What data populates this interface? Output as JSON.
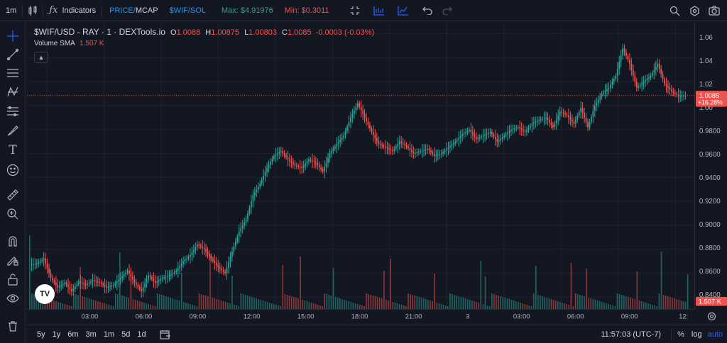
{
  "toolbar": {
    "interval": "1m",
    "indicators_label": "Indicators",
    "price_mcap_prefix": "PRICE/",
    "price_mcap_suffix": "MCAP",
    "pair_toggle": "$WIF/SOL",
    "max_label": "Max: $4.91976",
    "min_label": "Min: $0.3011"
  },
  "legend": {
    "symbol": "$WIF/USD - RAY · 1 · DEXTools.io",
    "o_label": "O",
    "o_val": "1.0088",
    "h_label": "H",
    "h_val": "1.00875",
    "l_label": "L",
    "l_val": "1.00803",
    "c_label": "C",
    "c_val": "1.0085",
    "change": "-0.0003 (-0.03%)",
    "volume_label": "Volume SMA",
    "volume_val": "1.507 K"
  },
  "price_axis": {
    "ticks": [
      "1.06",
      "1.04",
      "1.02",
      "1.00",
      "0.9800",
      "0.9600",
      "0.9400",
      "0.9200",
      "0.9000",
      "0.8800",
      "0.8600",
      "0.8400"
    ],
    "current_price": "1.0085",
    "current_change": "+16.28%",
    "volume_badge": "1.507 K"
  },
  "time_axis": {
    "ticks": [
      "03:00",
      "06:00",
      "09:00",
      "12:00",
      "15:00",
      "18:00",
      "21:00",
      "3",
      "03:00",
      "06:00",
      "09:00",
      "12:"
    ]
  },
  "bottom": {
    "ranges": [
      "5y",
      "1y",
      "6m",
      "3m",
      "1m",
      "5d",
      "1d"
    ],
    "clock": "11:57:03 (UTC-7)",
    "percent": "%",
    "log": "log",
    "auto": "auto"
  },
  "logo_text": "TV",
  "colors": {
    "background": "#131722",
    "up": "#26a69a",
    "down": "#ef5350",
    "accent": "#2962ff",
    "max_green": "#26a69a",
    "min_red": "#ef5350",
    "mcap_blue": "#2196f3"
  },
  "chart_data": {
    "type": "line",
    "title": "$WIF/USD - RAY · 1 · DEXTools.io",
    "ylim": [
      0.83,
      1.07
    ],
    "x_ticks": [
      "03:00",
      "06:00",
      "09:00",
      "12:00",
      "15:00",
      "18:00",
      "21:00",
      "3",
      "03:00",
      "06:00",
      "09:00",
      "12:"
    ],
    "price_series": [
      0.867,
      0.868,
      0.872,
      0.856,
      0.848,
      0.852,
      0.845,
      0.853,
      0.85,
      0.854,
      0.852,
      0.848,
      0.85,
      0.856,
      0.862,
      0.852,
      0.845,
      0.858,
      0.852,
      0.856,
      0.858,
      0.862,
      0.87,
      0.875,
      0.884,
      0.88,
      0.872,
      0.865,
      0.86,
      0.878,
      0.895,
      0.905,
      0.925,
      0.935,
      0.948,
      0.958,
      0.962,
      0.955,
      0.95,
      0.948,
      0.955,
      0.952,
      0.945,
      0.96,
      0.968,
      0.975,
      0.99,
      1.002,
      0.99,
      0.978,
      0.968,
      0.965,
      0.962,
      0.97,
      0.966,
      0.96,
      0.962,
      0.964,
      0.958,
      0.96,
      0.965,
      0.97,
      0.976,
      0.98,
      0.972,
      0.975,
      0.978,
      0.97,
      0.975,
      0.98,
      0.982,
      0.978,
      0.985,
      0.988,
      0.99,
      0.982,
      0.995,
      0.992,
      0.985,
      0.998,
      0.982,
      1.0,
      1.01,
      1.015,
      1.025,
      1.048,
      1.035,
      1.015,
      1.02,
      1.025,
      1.035,
      1.018,
      1.012,
      1.008,
      1.0085
    ],
    "volume_badge_value": "1.507 K"
  }
}
